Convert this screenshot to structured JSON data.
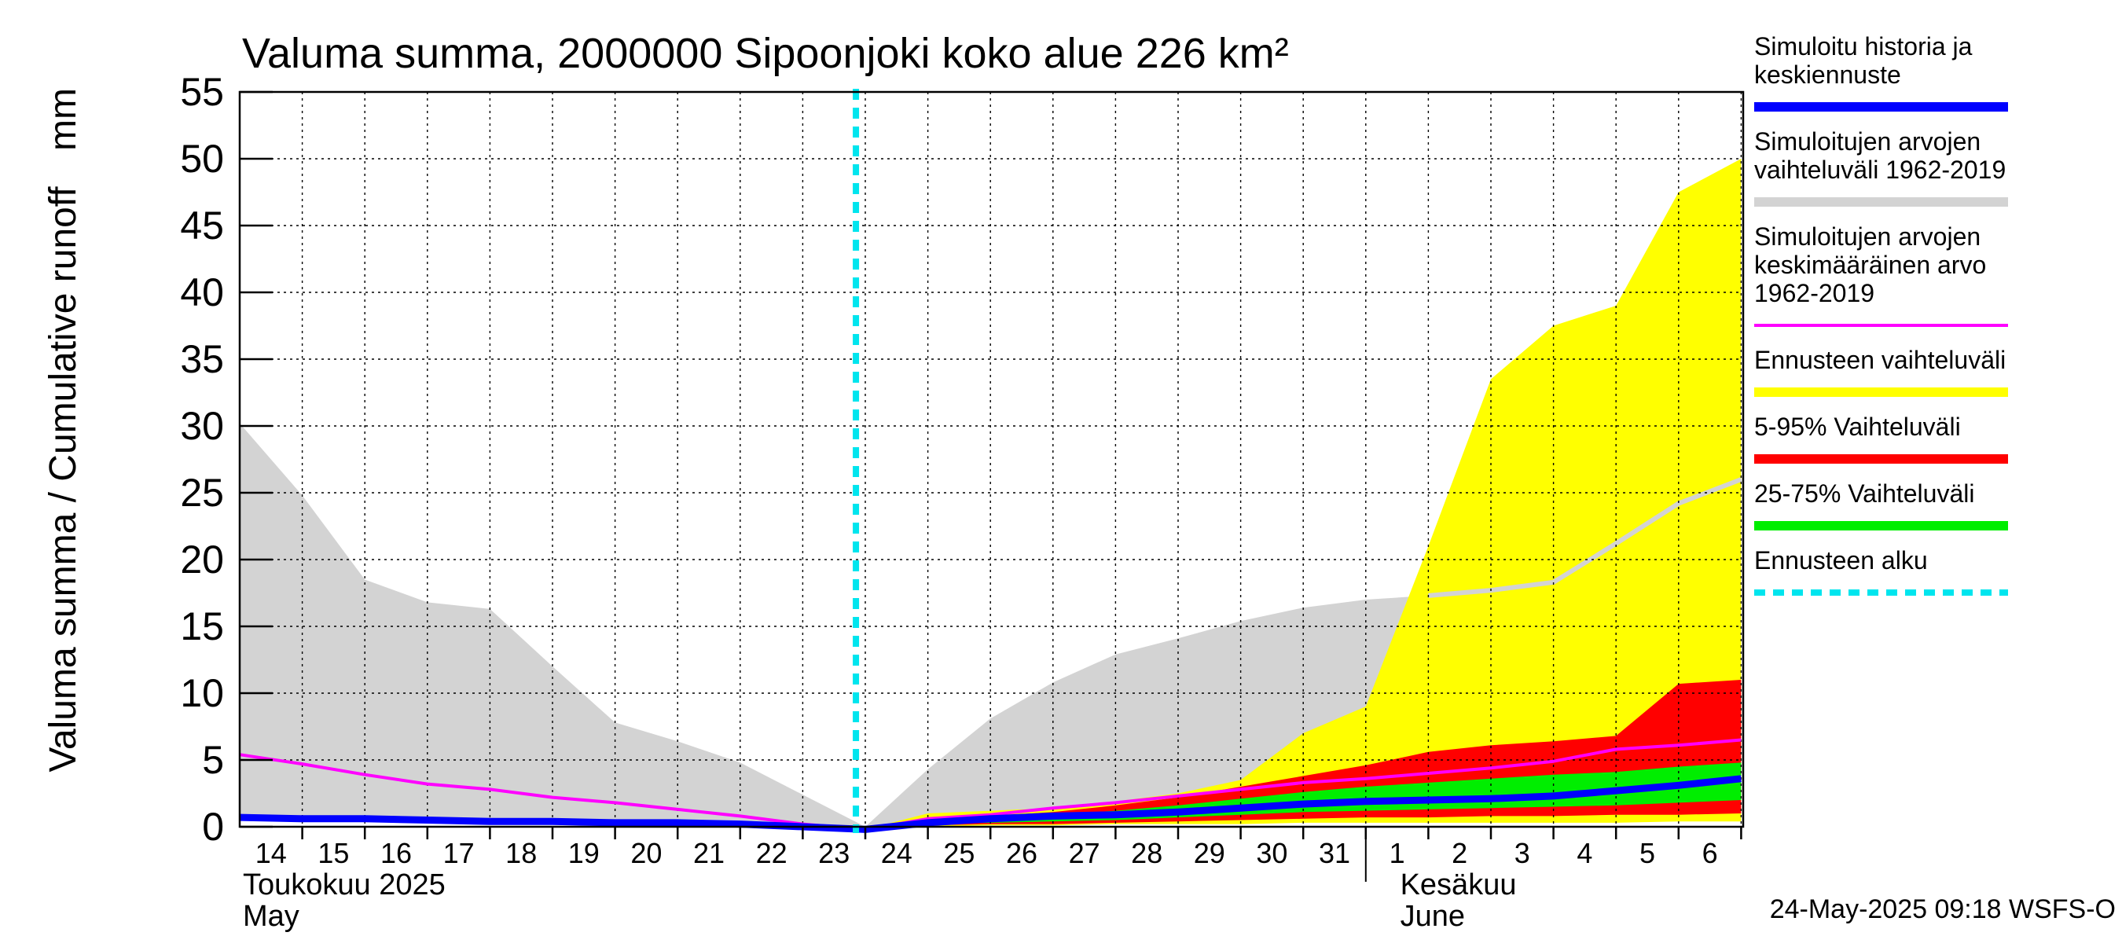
{
  "chart_data": {
    "type": "area",
    "title": "Valuma summa, 2000000 Sipoonjoki koko alue 226 km²",
    "ylabel": "Valuma summa / Cumulative runoff",
    "yunit": "mm",
    "ylim": [
      0,
      55
    ],
    "yticks": [
      0,
      5,
      10,
      15,
      20,
      25,
      30,
      35,
      40,
      45,
      50,
      55
    ],
    "grid": true,
    "legend_position": "right",
    "x": [
      "2025-05-14",
      "2025-05-15",
      "2025-05-16",
      "2025-05-17",
      "2025-05-18",
      "2025-05-19",
      "2025-05-20",
      "2025-05-21",
      "2025-05-22",
      "2025-05-23",
      "2025-05-24",
      "2025-05-25",
      "2025-05-26",
      "2025-05-27",
      "2025-05-28",
      "2025-05-29",
      "2025-05-30",
      "2025-05-31",
      "2025-06-01",
      "2025-06-02",
      "2025-06-03",
      "2025-06-04",
      "2025-06-05",
      "2025-06-06",
      "2025-06-07"
    ],
    "xtick_labels": [
      "14",
      "15",
      "16",
      "17",
      "18",
      "19",
      "20",
      "21",
      "22",
      "23",
      "24",
      "25",
      "26",
      "27",
      "28",
      "29",
      "30",
      "31",
      "1",
      "2",
      "3",
      "4",
      "5",
      "6"
    ],
    "month_labels": [
      {
        "line1": "Toukokuu  2025",
        "line2": "May"
      },
      {
        "line1": "Kesäkuu",
        "line2": "June"
      }
    ],
    "forecast_start": "2025-05-24",
    "history_range": {
      "x": [
        "2025-05-14",
        "2025-05-15",
        "2025-05-16",
        "2025-05-17",
        "2025-05-18",
        "2025-05-19",
        "2025-05-20",
        "2025-05-21",
        "2025-05-22",
        "2025-05-23",
        "2025-05-24",
        "2025-05-25",
        "2025-05-26",
        "2025-05-27",
        "2025-05-28",
        "2025-05-29",
        "2025-05-30",
        "2025-05-31",
        "2025-06-01",
        "2025-06-02",
        "2025-06-03",
        "2025-06-04",
        "2025-06-05",
        "2025-06-06",
        "2025-06-07"
      ],
      "upper": [
        30.2,
        24.8,
        18.5,
        16.8,
        16.3,
        12.0,
        7.8,
        6.4,
        4.8,
        2.4,
        0.0,
        4.3,
        8.1,
        10.8,
        12.9,
        14.1,
        15.4,
        16.4,
        17.0,
        17.3,
        17.7,
        18.3,
        21.2,
        24.2,
        26.0
      ],
      "lower": [
        0.8,
        0.7,
        0.6,
        0.5,
        0.4,
        0.3,
        0.2,
        0.2,
        0.1,
        0.0,
        -0.2,
        0.0,
        0.1,
        0.2,
        0.2,
        0.3,
        0.3,
        0.4,
        0.4,
        0.4,
        0.4,
        0.5,
        0.5,
        0.5,
        0.6
      ]
    },
    "series": [
      {
        "name": "Simuloitujen arvojen keskimääräinen arvo 1962-2019",
        "color": "#ff00ff",
        "values": [
          5.4,
          4.7,
          3.9,
          3.2,
          2.8,
          2.2,
          1.8,
          1.3,
          0.8,
          0.2,
          -0.2,
          0.6,
          0.9,
          1.4,
          1.8,
          2.3,
          2.8,
          3.3,
          3.6,
          4.0,
          4.4,
          4.9,
          5.8,
          6.1,
          6.5
        ]
      },
      {
        "name": "Simuloitu historia ja keskiennuste",
        "color": "#0000ff",
        "values": [
          0.7,
          0.6,
          0.6,
          0.5,
          0.4,
          0.4,
          0.3,
          0.3,
          0.2,
          0.0,
          -0.2,
          0.3,
          0.6,
          0.8,
          0.9,
          1.1,
          1.4,
          1.7,
          1.9,
          2.0,
          2.1,
          2.3,
          2.7,
          3.1,
          3.6
        ]
      }
    ],
    "forecast_x": [
      "2025-05-24",
      "2025-05-25",
      "2025-05-26",
      "2025-05-27",
      "2025-05-28",
      "2025-05-29",
      "2025-05-30",
      "2025-05-31",
      "2025-06-01",
      "2025-06-02",
      "2025-06-03",
      "2025-06-04",
      "2025-06-05",
      "2025-06-06",
      "2025-06-07"
    ],
    "forecast_bands": [
      {
        "name": "Ennusteen vaihteluväli",
        "color": "#ffff00",
        "upper": [
          -0.2,
          1.0,
          1.2,
          1.4,
          1.9,
          2.5,
          3.5,
          7.0,
          9.0,
          21.0,
          33.5,
          37.5,
          39.0,
          47.5,
          50.0
        ],
        "lower": [
          -0.2,
          0.0,
          0.1,
          0.1,
          0.2,
          0.2,
          0.2,
          0.3,
          0.3,
          0.3,
          0.3,
          0.3,
          0.3,
          0.4,
          0.4
        ]
      },
      {
        "name": "5-95% Vaihteluväli",
        "color": "#ff0000",
        "upper": [
          -0.2,
          0.5,
          0.8,
          1.1,
          1.6,
          2.2,
          3.0,
          3.8,
          4.6,
          5.6,
          6.1,
          6.4,
          6.8,
          10.7,
          11.0
        ],
        "lower": [
          -0.2,
          0.1,
          0.2,
          0.2,
          0.3,
          0.4,
          0.5,
          0.6,
          0.7,
          0.7,
          0.8,
          0.8,
          0.9,
          0.9,
          1.0
        ]
      },
      {
        "name": "25-75% Vaihteluväli",
        "color": "#00ee00",
        "upper": [
          -0.2,
          0.4,
          0.7,
          0.9,
          1.2,
          1.6,
          2.1,
          2.6,
          3.0,
          3.3,
          3.6,
          3.9,
          4.1,
          4.5,
          4.8
        ],
        "lower": [
          -0.2,
          0.2,
          0.3,
          0.4,
          0.5,
          0.7,
          0.9,
          1.1,
          1.2,
          1.3,
          1.4,
          1.5,
          1.6,
          1.8,
          2.0
        ]
      }
    ]
  },
  "legend": {
    "items": [
      {
        "text": "Simuloitu historia ja\nkeskiennuste",
        "color": "#0000ff",
        "style": "solid"
      },
      {
        "text": "Simuloitujen arvojen\nvaihteluväli 1962-2019",
        "color": "#d3d3d3",
        "style": "solid"
      },
      {
        "text": "Simuloitujen arvojen\nkeskimääräinen arvo\n   1962-2019",
        "color": "#ff00ff",
        "style": "thin"
      },
      {
        "text": "Ennusteen vaihteluväli",
        "color": "#ffff00",
        "style": "solid"
      },
      {
        "text": "5-95% Vaihteluväli",
        "color": "#ff0000",
        "style": "solid"
      },
      {
        "text": "25-75% Vaihteluväli",
        "color": "#00ee00",
        "style": "solid"
      },
      {
        "text": "Ennusteen alku",
        "color": "#00e5ee",
        "style": "dashed"
      }
    ]
  },
  "footer": {
    "timestamp": "24-May-2025 09:18 WSFS-O"
  }
}
